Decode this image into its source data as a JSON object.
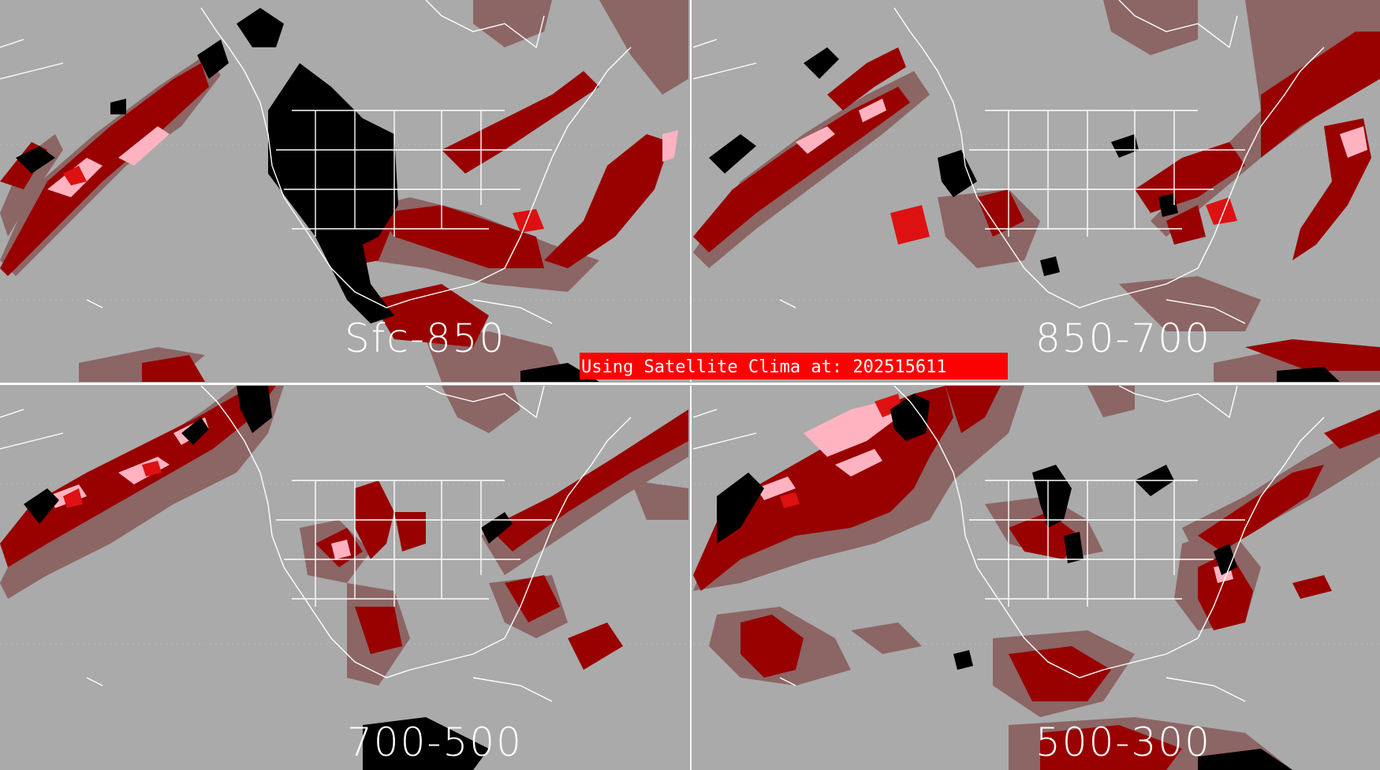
{
  "panels": [
    {
      "id": "sfc-850",
      "label": "Sfc-850"
    },
    {
      "id": "850-700",
      "label": "850-700"
    },
    {
      "id": "700-500",
      "label": "700-500"
    },
    {
      "id": "500-300",
      "label": "500-300"
    }
  ],
  "banner": {
    "text": "Using Satellite Clima at: 202515611"
  },
  "colors": {
    "background": "#aaaaaa",
    "coastline": "#ffffff",
    "category_dark_red": "#990000",
    "category_red": "#dd1111",
    "category_pink": "#ffb3c1",
    "category_grayish_red": "#8c6565",
    "category_black": "#000000",
    "banner": "#ff0000"
  }
}
